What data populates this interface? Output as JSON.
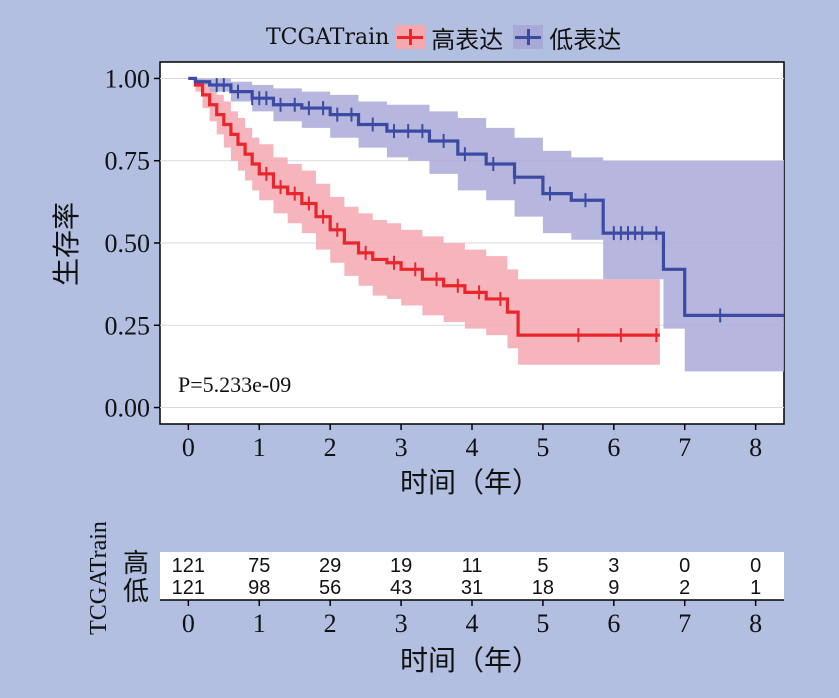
{
  "legend": {
    "title": "TCGATrain",
    "items": [
      {
        "label": "高表达",
        "color": "#e8262b"
      },
      {
        "label": "低表达",
        "color": "#3b4ba3"
      }
    ]
  },
  "pvalue": "P=5.233e-09",
  "chart_data": {
    "type": "line",
    "xlabel": "时间（年）",
    "ylabel": "生存率",
    "xlim": [
      -0.4,
      8.4
    ],
    "ylim": [
      -0.05,
      1.05
    ],
    "xticks": [
      "0",
      "1",
      "2",
      "3",
      "4",
      "5",
      "6",
      "7",
      "8"
    ],
    "yticks": [
      "0.00",
      "0.25",
      "0.50",
      "0.75",
      "1.00"
    ],
    "legend_position": "top",
    "grid": true,
    "series": [
      {
        "name": "高表达",
        "color": "#e8262b",
        "band_color": "#f5a8b0",
        "x": [
          0,
          0.1,
          0.2,
          0.3,
          0.4,
          0.5,
          0.6,
          0.7,
          0.8,
          0.9,
          1.0,
          1.2,
          1.4,
          1.6,
          1.8,
          2.0,
          2.2,
          2.4,
          2.6,
          2.8,
          3.0,
          3.3,
          3.6,
          3.9,
          4.2,
          4.5,
          4.65,
          5.0,
          5.5,
          6.0,
          6.65
        ],
        "y": [
          1.0,
          0.98,
          0.95,
          0.92,
          0.89,
          0.86,
          0.83,
          0.8,
          0.77,
          0.74,
          0.71,
          0.67,
          0.65,
          0.62,
          0.58,
          0.54,
          0.5,
          0.47,
          0.45,
          0.44,
          0.42,
          0.39,
          0.37,
          0.35,
          0.33,
          0.29,
          0.22,
          0.22,
          0.22,
          0.22,
          0.22
        ],
        "upper": [
          1.0,
          1.0,
          0.99,
          0.97,
          0.95,
          0.93,
          0.9,
          0.88,
          0.85,
          0.82,
          0.8,
          0.76,
          0.74,
          0.72,
          0.68,
          0.64,
          0.61,
          0.59,
          0.57,
          0.56,
          0.54,
          0.52,
          0.5,
          0.48,
          0.46,
          0.42,
          0.39,
          0.39,
          0.39,
          0.39,
          0.39
        ],
        "lower": [
          1.0,
          0.96,
          0.91,
          0.87,
          0.83,
          0.79,
          0.75,
          0.72,
          0.69,
          0.66,
          0.63,
          0.59,
          0.56,
          0.53,
          0.48,
          0.44,
          0.4,
          0.37,
          0.34,
          0.33,
          0.31,
          0.28,
          0.26,
          0.24,
          0.22,
          0.18,
          0.13,
          0.13,
          0.13,
          0.13,
          0.13
        ],
        "censor": [
          1.1,
          1.3,
          1.5,
          1.7,
          1.9,
          2.1,
          2.5,
          2.9,
          3.2,
          3.5,
          3.8,
          4.1,
          4.4,
          5.5,
          6.1,
          6.6
        ]
      },
      {
        "name": "低表达",
        "color": "#3b4ba3",
        "band_color": "#a9a9d8",
        "x": [
          0,
          0.1,
          0.3,
          0.6,
          0.9,
          1.2,
          1.6,
          2.0,
          2.4,
          2.8,
          3.1,
          3.4,
          3.8,
          4.2,
          4.6,
          5.0,
          5.4,
          5.8,
          5.85,
          6.2,
          6.7,
          6.9,
          7.0,
          7.5,
          8.4
        ],
        "y": [
          1.0,
          0.99,
          0.98,
          0.96,
          0.94,
          0.92,
          0.91,
          0.89,
          0.86,
          0.84,
          0.84,
          0.81,
          0.77,
          0.74,
          0.7,
          0.65,
          0.63,
          0.63,
          0.53,
          0.53,
          0.42,
          0.42,
          0.28,
          0.28,
          0.28
        ],
        "upper": [
          1.0,
          1.0,
          1.0,
          0.99,
          0.98,
          0.97,
          0.96,
          0.95,
          0.93,
          0.92,
          0.92,
          0.9,
          0.88,
          0.85,
          0.82,
          0.78,
          0.76,
          0.76,
          0.75,
          0.75,
          0.75,
          0.75,
          0.75,
          0.75,
          0.75
        ],
        "lower": [
          1.0,
          0.98,
          0.96,
          0.93,
          0.9,
          0.87,
          0.85,
          0.82,
          0.79,
          0.76,
          0.75,
          0.71,
          0.66,
          0.63,
          0.58,
          0.53,
          0.51,
          0.51,
          0.39,
          0.39,
          0.24,
          0.24,
          0.11,
          0.11,
          0.11
        ],
        "censor": [
          0.4,
          0.5,
          0.7,
          0.9,
          1.0,
          1.1,
          1.3,
          1.5,
          1.7,
          1.9,
          2.1,
          2.3,
          2.6,
          2.9,
          3.1,
          3.3,
          3.6,
          3.9,
          4.3,
          4.6,
          5.1,
          5.6,
          6.0,
          6.1,
          6.2,
          6.3,
          6.4,
          6.6,
          7.5
        ]
      }
    ]
  },
  "risk_table": {
    "title": "TCGATrain",
    "xlabel": "时间（年）",
    "times": [
      "0",
      "1",
      "2",
      "3",
      "4",
      "5",
      "6",
      "7",
      "8"
    ],
    "rows": [
      {
        "label": "高",
        "values": [
          "121",
          "75",
          "29",
          "19",
          "11",
          "5",
          "3",
          "0",
          "0"
        ]
      },
      {
        "label": "低",
        "values": [
          "121",
          "98",
          "56",
          "43",
          "31",
          "18",
          "9",
          "2",
          "1"
        ]
      }
    ]
  }
}
